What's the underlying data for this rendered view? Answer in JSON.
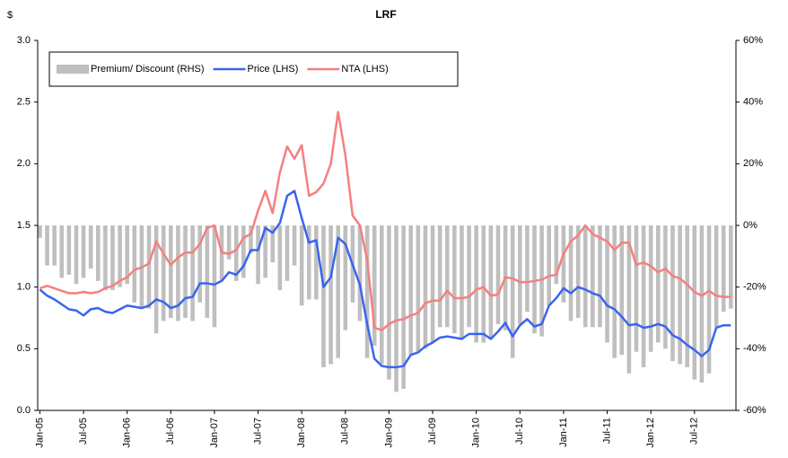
{
  "chart_data": {
    "type": "combo",
    "title": "LRF",
    "y_label": "$",
    "categories": [
      "Jan-05",
      null,
      null,
      null,
      null,
      null,
      "Jul-05",
      null,
      null,
      null,
      null,
      null,
      "Jan-06",
      null,
      null,
      null,
      null,
      null,
      "Jul-06",
      null,
      null,
      null,
      null,
      null,
      "Jan-07",
      null,
      null,
      null,
      null,
      null,
      "Jul-07",
      null,
      null,
      null,
      null,
      null,
      "Jan-08",
      null,
      null,
      null,
      null,
      null,
      "Jul-08",
      null,
      null,
      null,
      null,
      null,
      "Jan-09",
      null,
      null,
      null,
      null,
      null,
      "Jul-09",
      null,
      null,
      null,
      null,
      null,
      "Jan-10",
      null,
      null,
      null,
      null,
      null,
      "Jul-10",
      null,
      null,
      null,
      null,
      null,
      "Jan-11",
      null,
      null,
      null,
      null,
      null,
      "Jul-11",
      null,
      null,
      null,
      null,
      null,
      "Jan-12",
      null,
      null,
      null,
      null,
      null,
      "Jul-12",
      null,
      null,
      null,
      null,
      null
    ],
    "series": [
      {
        "name": "Premium/ Discount (RHS)",
        "type": "bar",
        "axis": "y2",
        "color": "#bfbfbf",
        "values": [
          -4,
          -13,
          -13,
          -17,
          -16,
          -19,
          -17,
          -14,
          -18,
          -21,
          -21,
          -20,
          -19,
          -25,
          -27,
          -27,
          -35,
          -31,
          -30,
          -31,
          -30,
          -31,
          -25,
          -30,
          -33,
          -18,
          -11,
          -18,
          -17,
          -9,
          -19,
          -17,
          -12,
          -21,
          -18,
          -13,
          -26,
          -24,
          -24,
          -46,
          -45,
          -43,
          -34,
          -25,
          -31,
          -43,
          -39,
          -45,
          -50,
          -54,
          -53,
          -42,
          -41,
          -40,
          -38,
          -33,
          -33,
          -35,
          -37,
          -33,
          -38,
          -38,
          -37,
          -32,
          -34,
          -43,
          -32,
          -28,
          -35,
          -36,
          -26,
          -19,
          -25,
          -31,
          -30,
          -33,
          -33,
          -33,
          -38,
          -43,
          -42,
          -48,
          -41,
          -46,
          -41,
          -38,
          -40,
          -44,
          -45,
          -46,
          -50,
          -51,
          -48,
          -33,
          -28,
          -27
        ]
      },
      {
        "name": "Price (LHS)",
        "type": "line",
        "color": "#3a64f0",
        "values": [
          0.98,
          0.93,
          0.9,
          0.86,
          0.82,
          0.81,
          0.77,
          0.82,
          0.83,
          0.8,
          0.79,
          0.82,
          0.85,
          0.84,
          0.83,
          0.85,
          0.9,
          0.88,
          0.83,
          0.85,
          0.91,
          0.92,
          1.03,
          1.03,
          1.02,
          1.05,
          1.12,
          1.1,
          1.17,
          1.3,
          1.3,
          1.48,
          1.44,
          1.52,
          1.74,
          1.78,
          1.56,
          1.36,
          1.38,
          1.0,
          1.08,
          1.4,
          1.35,
          1.18,
          1.02,
          0.7,
          0.42,
          0.36,
          0.35,
          0.35,
          0.36,
          0.45,
          0.47,
          0.52,
          0.55,
          0.59,
          0.6,
          0.59,
          0.58,
          0.62,
          0.62,
          0.62,
          0.58,
          0.64,
          0.71,
          0.6,
          0.69,
          0.74,
          0.68,
          0.7,
          0.85,
          0.91,
          0.99,
          0.95,
          1.0,
          0.98,
          0.95,
          0.93,
          0.85,
          0.82,
          0.76,
          0.69,
          0.7,
          0.67,
          0.68,
          0.7,
          0.68,
          0.61,
          0.58,
          0.53,
          0.49,
          0.44,
          0.49,
          0.67,
          0.69,
          0.69
        ]
      },
      {
        "name": "NTA (LHS)",
        "type": "line",
        "color": "#f58080",
        "values": [
          0.99,
          1.01,
          0.99,
          0.97,
          0.95,
          0.95,
          0.96,
          0.95,
          0.96,
          0.99,
          1.01,
          1.05,
          1.08,
          1.14,
          1.16,
          1.19,
          1.37,
          1.27,
          1.18,
          1.24,
          1.28,
          1.28,
          1.35,
          1.48,
          1.5,
          1.28,
          1.27,
          1.3,
          1.4,
          1.43,
          1.62,
          1.78,
          1.6,
          1.93,
          2.14,
          2.04,
          2.15,
          1.74,
          1.77,
          1.84,
          2.0,
          2.42,
          2.07,
          1.58,
          1.5,
          1.22,
          0.67,
          0.65,
          0.7,
          0.73,
          0.74,
          0.77,
          0.79,
          0.87,
          0.89,
          0.89,
          0.97,
          0.91,
          0.91,
          0.92,
          0.98,
          1.0,
          0.93,
          0.94,
          1.08,
          1.07,
          1.04,
          1.04,
          1.05,
          1.06,
          1.09,
          1.1,
          1.27,
          1.37,
          1.42,
          1.5,
          1.43,
          1.4,
          1.37,
          1.3,
          1.36,
          1.36,
          1.18,
          1.2,
          1.17,
          1.12,
          1.15,
          1.09,
          1.07,
          1.02,
          0.96,
          0.93,
          0.97,
          0.93,
          0.92,
          0.92
        ]
      }
    ],
    "ylim": [
      0,
      3
    ],
    "yticks": [
      {
        "value": 0,
        "label": "0.0"
      },
      0.5,
      {
        "value": 1,
        "label": "1.0"
      },
      1.5,
      {
        "value": 2,
        "label": "2.0"
      },
      2.5,
      {
        "value": 3,
        "label": "3.0"
      }
    ],
    "y2lim": [
      -60,
      60
    ],
    "y2ticks": [
      {
        "value": -60,
        "label": "-60%"
      },
      {
        "value": -40,
        "label": "-40%"
      },
      {
        "value": -20,
        "label": "-20%"
      },
      {
        "value": 0,
        "label": "0%"
      },
      {
        "value": 20,
        "label": "20%"
      },
      {
        "value": 40,
        "label": "40%"
      },
      {
        "value": 60,
        "label": "60%"
      }
    ],
    "legend": "upper left",
    "grid": false
  }
}
